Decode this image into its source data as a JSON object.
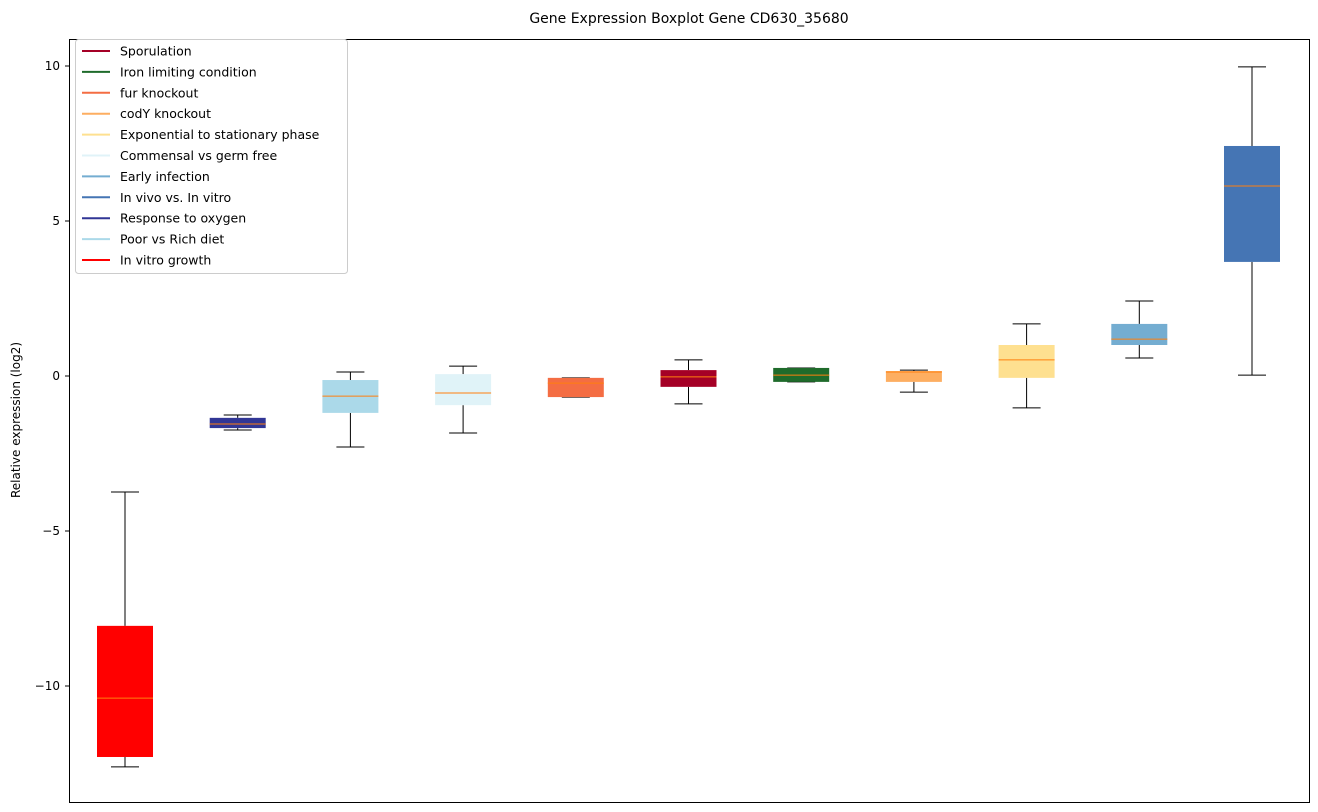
{
  "chart_data": {
    "type": "boxplot",
    "title": "Gene Expression Boxplot Gene CD630_35680",
    "xlabel": "",
    "ylabel": "Relative expression (log2)",
    "ylim": [
      -13.7,
      10.9
    ],
    "yticks": [
      10,
      5,
      0,
      -5,
      -10
    ],
    "ytick_labels": [
      "10",
      "5",
      "0",
      "−5",
      "−10"
    ],
    "legend_position": "top-left",
    "legend": [
      {
        "label": "Sporulation",
        "color": "#a50026"
      },
      {
        "label": "Iron limiting condition",
        "color": "#1f6b2b"
      },
      {
        "label": "fur knockout",
        "color": "#f46d43"
      },
      {
        "label": "codY knockout",
        "color": "#fdae61"
      },
      {
        "label": "Exponential to stationary phase",
        "color": "#fee090"
      },
      {
        "label": "Commensal vs germ free",
        "color": "#e0f3f8"
      },
      {
        "label": "Early infection",
        "color": "#74add1"
      },
      {
        "label": "In vivo vs. In vitro",
        "color": "#4575b4"
      },
      {
        "label": "Response to oxygen",
        "color": "#313695"
      },
      {
        "label": "Poor vs Rich diet",
        "color": "#abd9e9"
      },
      {
        "label": "In vitro growth",
        "color": "#ff0000"
      }
    ],
    "median_color": "#ff7f0e",
    "boxes": [
      {
        "group": "In vitro growth",
        "color": "#ff0000",
        "whislo": -12.61,
        "q1": -12.29,
        "median": -10.39,
        "q3": -8.06,
        "whishi": -3.74
      },
      {
        "group": "Response to oxygen",
        "color": "#313695",
        "whislo": -1.74,
        "q1": -1.68,
        "median": -1.55,
        "q3": -1.35,
        "whishi": -1.26
      },
      {
        "group": "Poor vs Rich diet",
        "color": "#abd9e9",
        "whislo": -2.29,
        "q1": -1.19,
        "median": -0.65,
        "q3": -0.13,
        "whishi": 0.13
      },
      {
        "group": "Commensal vs germ free",
        "color": "#e0f3f8",
        "whislo": -1.84,
        "q1": -0.94,
        "median": -0.55,
        "q3": 0.06,
        "whishi": 0.32
      },
      {
        "group": "fur knockout",
        "color": "#f46d43",
        "whislo": -0.68,
        "q1": -0.68,
        "median": -0.23,
        "q3": -0.06,
        "whishi": -0.06
      },
      {
        "group": "Sporulation",
        "color": "#a50026",
        "whislo": -0.9,
        "q1": -0.35,
        "median": -0.03,
        "q3": 0.19,
        "whishi": 0.52
      },
      {
        "group": "Iron limiting condition",
        "color": "#1f6b2b",
        "whislo": -0.19,
        "q1": -0.19,
        "median": 0.03,
        "q3": 0.26,
        "whishi": 0.26
      },
      {
        "group": "codY knockout",
        "color": "#fdae61",
        "whislo": -0.52,
        "q1": -0.19,
        "median": 0.13,
        "q3": 0.16,
        "whishi": 0.19
      },
      {
        "group": "Exponential to stationary phase",
        "color": "#fee090",
        "whislo": -1.03,
        "q1": -0.06,
        "median": 0.52,
        "q3": 1.0,
        "whishi": 1.68
      },
      {
        "group": "Early infection",
        "color": "#74add1",
        "whislo": 0.58,
        "q1": 1.0,
        "median": 1.19,
        "q3": 1.68,
        "whishi": 2.42
      },
      {
        "group": "In vivo vs. In vitro",
        "color": "#4575b4",
        "whislo": 0.03,
        "q1": 3.68,
        "median": 6.13,
        "q3": 7.42,
        "whishi": 9.97
      }
    ]
  }
}
